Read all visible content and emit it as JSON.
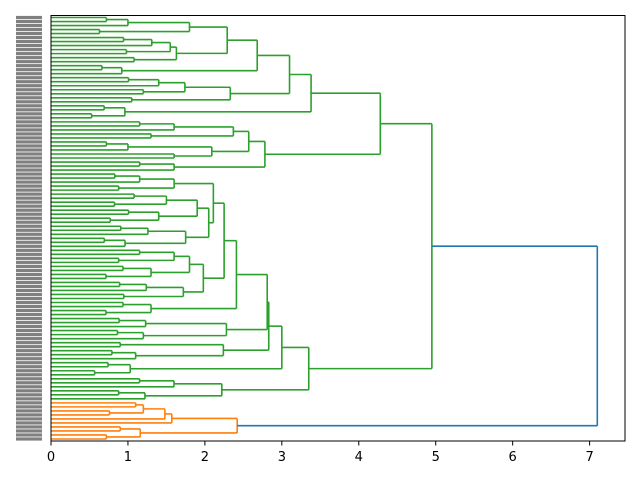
{
  "chart_data": {
    "type": "dendrogram",
    "orientation": "leaves-left",
    "title": "",
    "xlabel": "",
    "ylabel": "",
    "xlim": [
      0,
      7.46
    ],
    "xticks": [
      0,
      1,
      2,
      3,
      4,
      5,
      6,
      7
    ],
    "xtick_labels": [
      "0",
      "1",
      "2",
      "3",
      "4",
      "5",
      "6",
      "7"
    ],
    "grid": false,
    "leaf_labels_legible": false,
    "colors": {
      "above_threshold": "#1f77b4",
      "cluster_1": "#2ca02c",
      "cluster_2": "#ff7f0e"
    },
    "tree": {
      "h": 7.1,
      "color": "#1f77b4",
      "c": [
        {
          "h": 4.95,
          "color": "#2ca02c",
          "c": [
            {
              "h": 4.28,
              "c": [
                {
                  "h": 3.38,
                  "c": [
                    {
                      "h": 3.1,
                      "c": [
                        {
                          "h": 2.68,
                          "c": [
                            {
                              "h": 2.29,
                              "c": [
                                {
                                  "h": 1.8,
                                  "c": [
                                    {
                                      "g": 3,
                                      "h": 1.0
                                    },
                                    {
                                      "g": 2,
                                      "h": 0.63
                                    }
                                  ]
                                },
                                {
                                  "h": 1.63,
                                  "c": [
                                    {
                                      "h": 1.55,
                                      "c": [
                                        {
                                          "g": 3,
                                          "h": 1.31
                                        },
                                        {
                                          "g": 2,
                                          "h": 0.98
                                        }
                                      ]
                                    },
                                    {
                                      "g": 2,
                                      "h": 1.08
                                    }
                                  ]
                                }
                              ]
                            },
                            {
                              "g": 3,
                              "h": 0.92
                            }
                          ]
                        },
                        {
                          "h": 2.33,
                          "c": [
                            {
                              "h": 1.74,
                              "c": [
                                {
                                  "g": 3,
                                  "h": 1.4
                                },
                                {
                                  "g": 2,
                                  "h": 1.2
                                }
                              ]
                            },
                            {
                              "g": 2,
                              "h": 1.05
                            }
                          ]
                        }
                      ]
                    },
                    {
                      "g": 4,
                      "h": 0.96
                    }
                  ]
                },
                {
                  "h": 2.78,
                  "c": [
                    {
                      "h": 2.57,
                      "c": [
                        {
                          "h": 2.37,
                          "c": [
                            {
                              "g": 3,
                              "h": 1.6
                            },
                            {
                              "g": 2,
                              "h": 1.3
                            }
                          ]
                        },
                        {
                          "h": 2.09,
                          "c": [
                            {
                              "g": 3,
                              "h": 1.0
                            },
                            {
                              "g": 2,
                              "h": 1.6
                            }
                          ]
                        }
                      ]
                    },
                    {
                      "g": 3,
                      "h": 1.6
                    }
                  ]
                }
              ]
            },
            {
              "h": 3.35,
              "c": [
                {
                  "h": 3.0,
                  "c": [
                    {
                      "h": 2.83,
                      "c": [
                        {
                          "h": 2.81,
                          "c": [
                            {
                              "h": 2.41,
                              "c": [
                                {
                                  "h": 2.25,
                                  "c": [
                                    {
                                      "h": 2.11,
                                      "c": [
                                        {
                                          "g": 5,
                                          "h": 1.6
                                        },
                                        {
                                          "h": 2.05,
                                          "c": [
                                            {
                                              "h": 1.9,
                                              "c": [
                                                {
                                                  "g": 4,
                                                  "h": 1.5
                                                },
                                                {
                                                  "g": 4,
                                                  "h": 1.4
                                                }
                                              ]
                                            },
                                            {
                                              "g": 6,
                                              "h": 1.75
                                            }
                                          ]
                                        }
                                      ]
                                    },
                                    {
                                      "h": 1.98,
                                      "c": [
                                        {
                                          "h": 1.8,
                                          "c": [
                                            {
                                              "g": 4,
                                              "h": 1.6
                                            },
                                            {
                                              "g": 4,
                                              "h": 1.3
                                            }
                                          ]
                                        },
                                        {
                                          "g": 5,
                                          "h": 1.72
                                        }
                                      ]
                                    }
                                  ]
                                },
                                {
                                  "g": 4,
                                  "h": 1.3
                                }
                              ]
                            },
                            {
                              "h": 2.28,
                              "c": [
                                {
                                  "g": 3,
                                  "h": 1.23
                                },
                                {
                                  "g": 3,
                                  "h": 1.2
                                }
                              ]
                            }
                          ]
                        },
                        {
                          "h": 2.24,
                          "c": [
                            {
                              "g": 2,
                              "h": 0.9
                            },
                            {
                              "g": 3,
                              "h": 1.1
                            }
                          ]
                        }
                      ]
                    },
                    {
                      "g": 4,
                      "h": 1.03
                    }
                  ]
                },
                {
                  "g": 6,
                  "h": 2.22
                }
              ]
            }
          ]
        },
        {
          "h": 2.42,
          "color": "#ff7f0e",
          "c": [
            {
              "h": 1.57,
              "c": [
                {
                  "h": 1.48,
                  "c": [
                    {
                      "h": 1.2,
                      "c": [
                        {
                          "g": 2,
                          "h": 1.1
                        },
                        {
                          "g": 2,
                          "h": 0.76
                        }
                      ]
                    },
                    {
                      "g": 1,
                      "h": 0
                    }
                  ]
                },
                {
                  "g": 1,
                  "h": 0
                }
              ]
            },
            {
              "h": 1.16,
              "c": [
                {
                  "g": 2,
                  "h": 0.9
                },
                {
                  "g": 2,
                  "h": 0.72
                }
              ]
            }
          ]
        }
      ]
    }
  }
}
